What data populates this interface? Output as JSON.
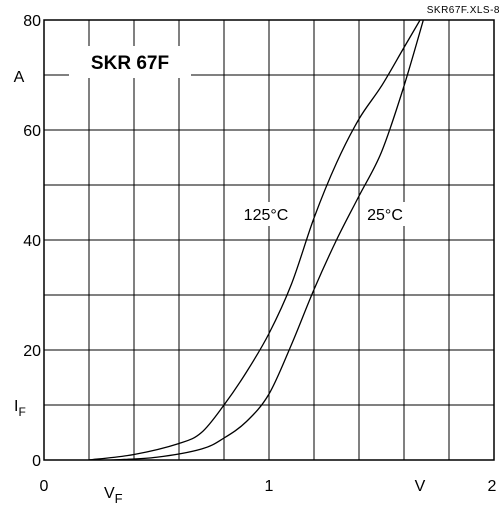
{
  "chart_data": {
    "type": "line",
    "title": "SKR 67F",
    "file_label": "SKR67F.XLS-8",
    "xlabel": "V",
    "xlabel_sub": "F",
    "xunit": "V",
    "ylabel": "I",
    "ylabel_sub": "F",
    "yunit": "A",
    "xlim": [
      0,
      2
    ],
    "ylim": [
      0,
      80
    ],
    "grid": true,
    "x_tick_labels": [
      {
        "value": 0,
        "text": "0"
      },
      {
        "value": 1,
        "text": "1"
      },
      {
        "value": 2,
        "text": "2"
      }
    ],
    "y_tick_labels": [
      {
        "value": 0,
        "text": "0"
      },
      {
        "value": 20,
        "text": "20"
      },
      {
        "value": 40,
        "text": "40"
      },
      {
        "value": 60,
        "text": "60"
      },
      {
        "value": 80,
        "text": "80"
      }
    ],
    "series": [
      {
        "name": "125°C",
        "x": [
          0.2,
          0.4,
          0.6,
          0.7,
          0.8,
          0.9,
          1.0,
          1.1,
          1.2,
          1.3,
          1.4,
          1.5,
          1.6,
          1.7
        ],
        "y": [
          0,
          1,
          3,
          5,
          10,
          16,
          23,
          32,
          44,
          54,
          62,
          68,
          75,
          82
        ]
      },
      {
        "name": "25°C",
        "x": [
          0.3,
          0.5,
          0.7,
          0.8,
          0.9,
          1.0,
          1.1,
          1.2,
          1.3,
          1.4,
          1.5,
          1.6,
          1.7
        ],
        "y": [
          0,
          0.5,
          2,
          4,
          7,
          12,
          21,
          31,
          40,
          48,
          56,
          68,
          82
        ]
      }
    ]
  }
}
